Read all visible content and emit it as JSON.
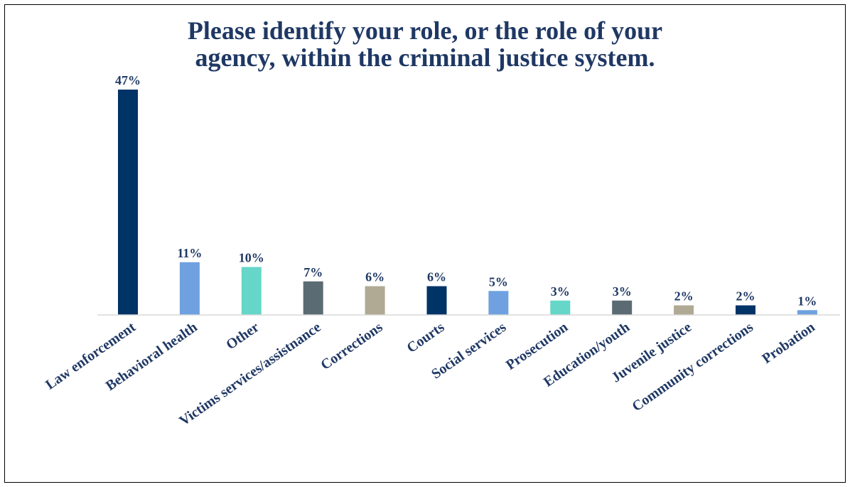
{
  "chart_data": {
    "type": "bar",
    "title_lines": [
      "Please identify your role, or the role of your",
      "agency, within the criminal justice system."
    ],
    "xlabel": "",
    "ylabel": "",
    "categories": [
      "Law enforcement",
      "Behavioral health",
      "Other",
      "Victims services/assistnance",
      "Corrections",
      "Courts",
      "Social services",
      "Prosecution",
      "Education/youth",
      "Juvenile justice",
      "Community corrections",
      "Probation"
    ],
    "values": [
      47,
      11,
      10,
      7,
      6,
      6,
      5,
      3,
      3,
      2,
      2,
      1
    ],
    "value_labels": [
      "47%",
      "11%",
      "10%",
      "7%",
      "6%",
      "6%",
      "5%",
      "3%",
      "3%",
      "2%",
      "2%",
      "1%"
    ],
    "unit": "%",
    "bar_colors": [
      "#003366",
      "#6fa1e0",
      "#66d6c9",
      "#5b6b73",
      "#b0a994",
      "#003366",
      "#6fa1e0",
      "#66d6c9",
      "#5b6b73",
      "#b0a994",
      "#003366",
      "#6fa1e0"
    ],
    "label_color": "#1f3864",
    "category_label_color": "#1f3864",
    "ylim": [
      0,
      47
    ],
    "grid": false,
    "legend": "none"
  }
}
